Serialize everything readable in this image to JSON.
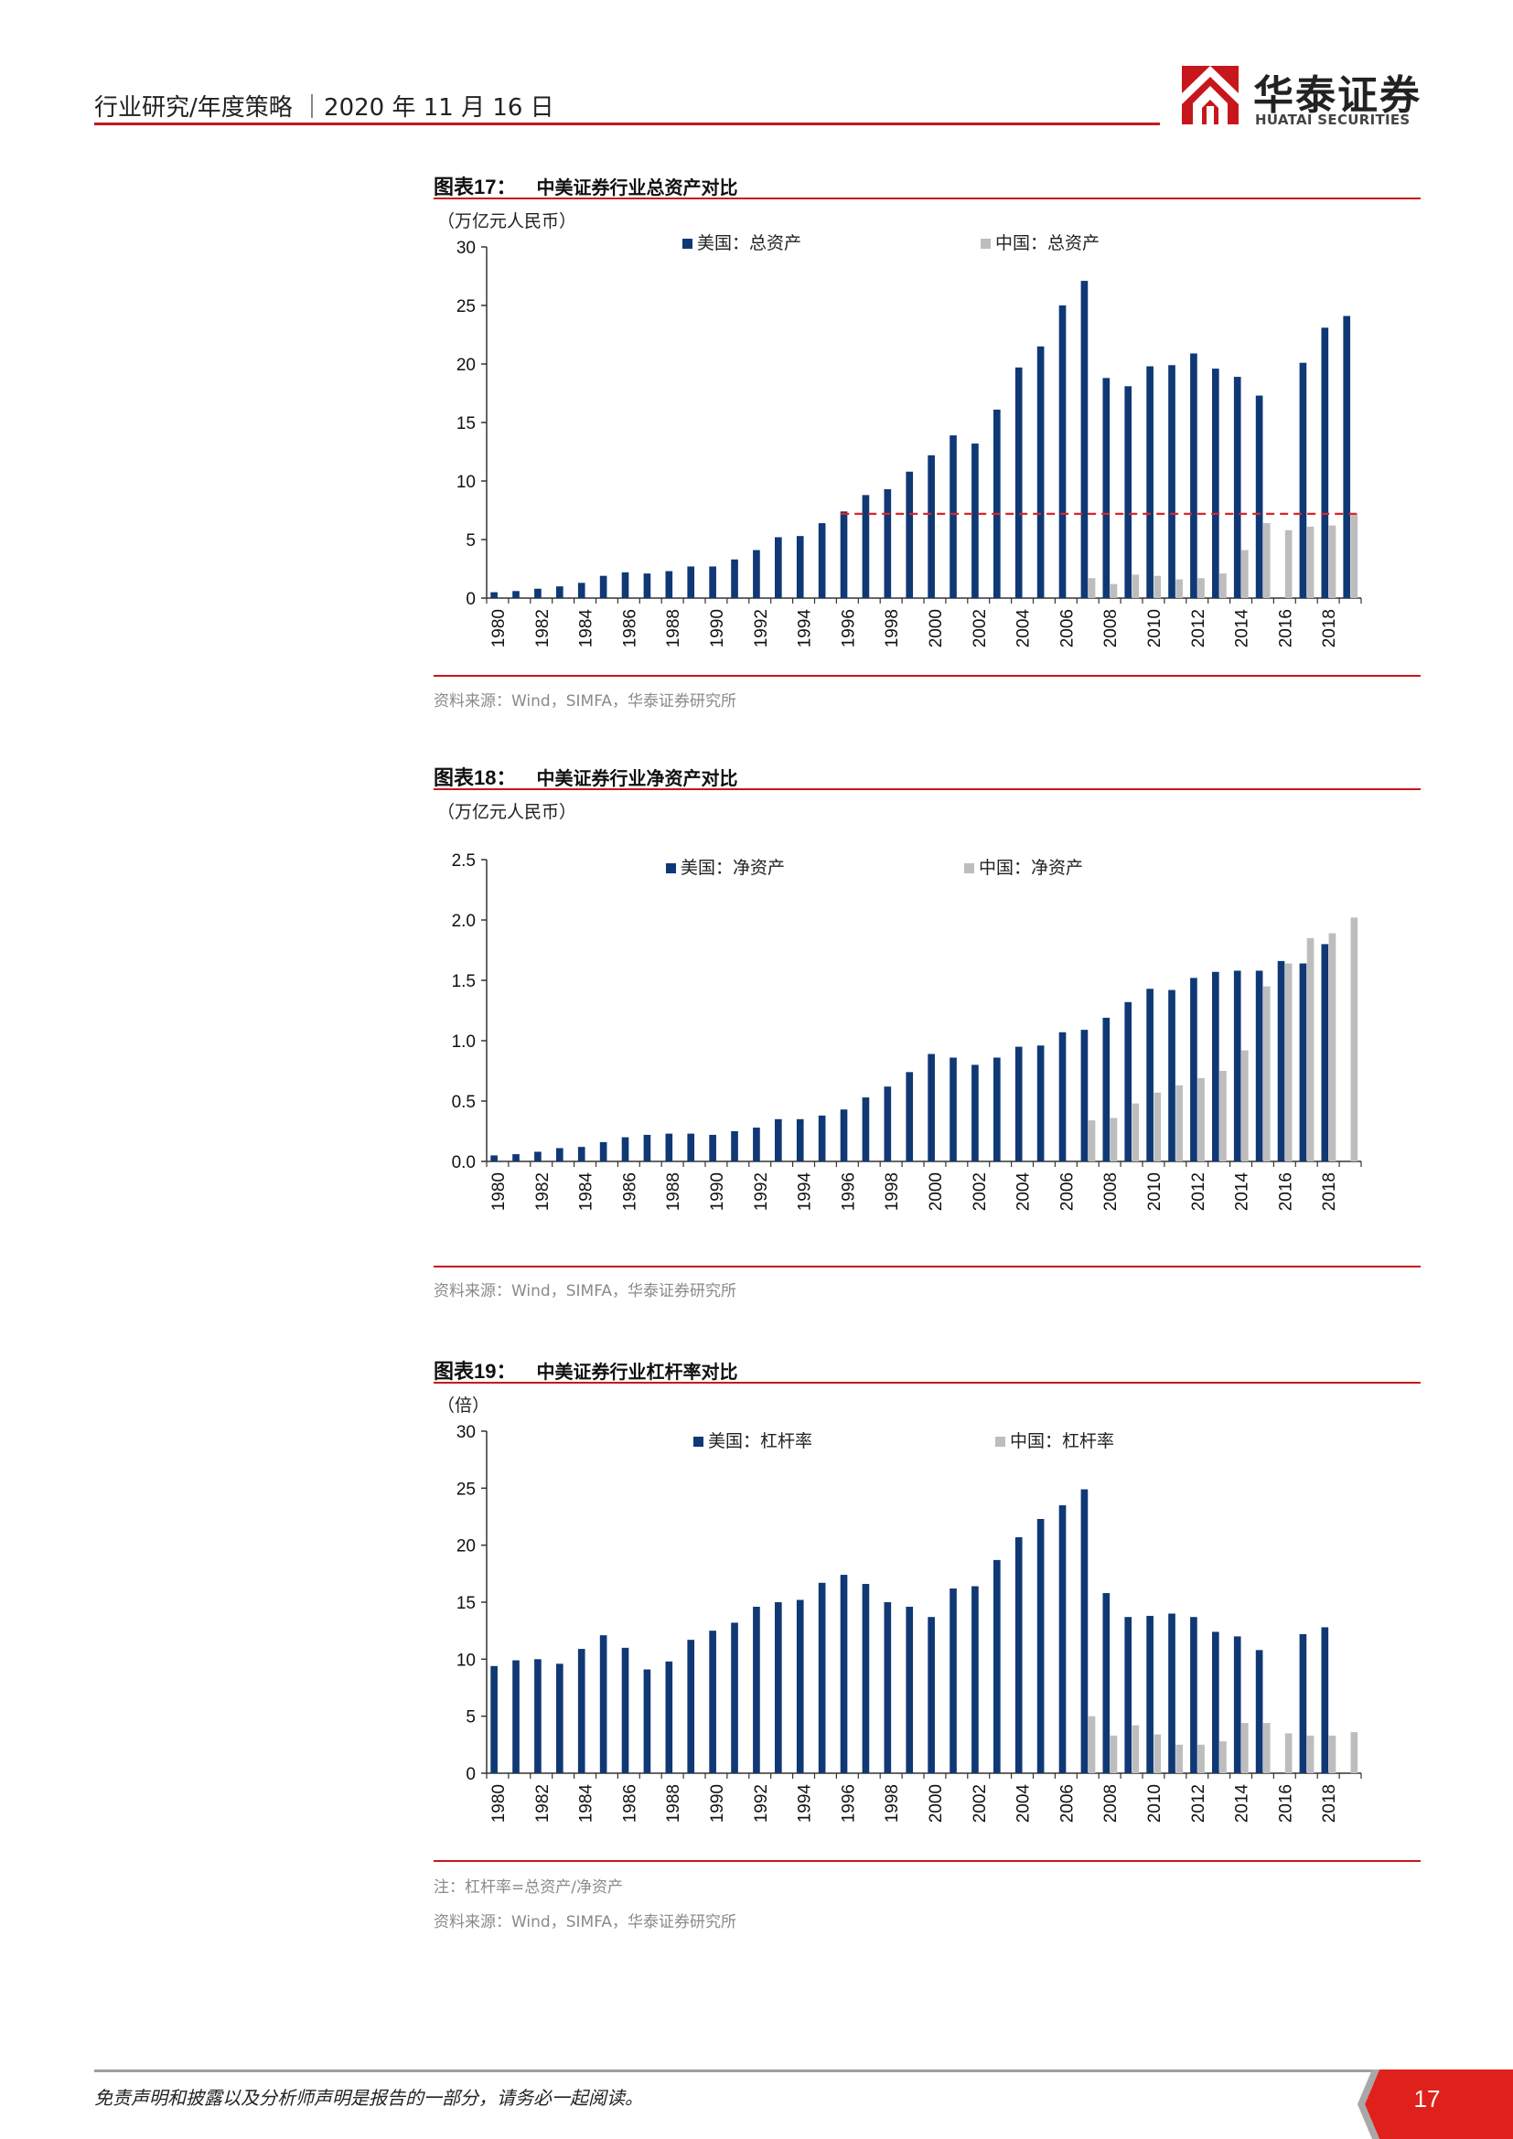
{
  "header": {
    "left_text": "行业研究/年度策略 ｜2020 年 11 月 16 日",
    "logo_text": "华泰证券",
    "logo_sub": "HUATAI SECURITIES"
  },
  "colors": {
    "us": "#0f3875",
    "cn": "#bdbdbd",
    "accent": "#c8161d",
    "ref_line": "#d9262b"
  },
  "figures": [
    {
      "label": "图表17：",
      "title": "中美证券行业总资产对比",
      "unit": "（万亿元人民币）",
      "source": "资料来源：Wind，SIMFA，华泰证券研究所",
      "chart_data": {
        "type": "bar",
        "categories": [
          "1980",
          "1981",
          "1982",
          "1983",
          "1984",
          "1985",
          "1986",
          "1987",
          "1988",
          "1989",
          "1990",
          "1991",
          "1992",
          "1993",
          "1994",
          "1995",
          "1996",
          "1997",
          "1998",
          "1999",
          "2000",
          "2001",
          "2002",
          "2003",
          "2004",
          "2005",
          "2006",
          "2007",
          "2008",
          "2009",
          "2010",
          "2011",
          "2012",
          "2013",
          "2014",
          "2015",
          "2016",
          "2017",
          "2018",
          "2019"
        ],
        "ylim": [
          0,
          30
        ],
        "yticks": [
          "0",
          "5",
          "10",
          "15",
          "20",
          "25",
          "30"
        ],
        "yticks_values": [
          0,
          5,
          10,
          15,
          20,
          25,
          30
        ],
        "xtick_labels": [
          "1980",
          "1982",
          "1984",
          "1986",
          "1988",
          "1990",
          "1992",
          "1994",
          "1996",
          "1998",
          "2000",
          "2002",
          "2004",
          "2006",
          "2008",
          "2010",
          "2012",
          "2014",
          "2016",
          "2018"
        ],
        "legend_position": "top",
        "reference_line": {
          "value": 7.2,
          "from": "1996",
          "to": "2019",
          "style": "dashed"
        },
        "series": [
          {
            "name": "美国：总资产",
            "values": [
              0.5,
              0.6,
              0.8,
              1.0,
              1.3,
              1.9,
              2.2,
              2.1,
              2.3,
              2.7,
              2.7,
              3.3,
              4.1,
              5.2,
              5.3,
              6.4,
              7.4,
              8.8,
              9.3,
              10.8,
              12.2,
              13.9,
              13.2,
              16.1,
              19.7,
              21.5,
              25.0,
              27.1,
              18.8,
              18.1,
              19.8,
              19.9,
              20.9,
              19.6,
              18.9,
              17.3,
              null,
              20.1,
              23.1,
              24.1
            ]
          },
          {
            "name": "中国：总资产",
            "values": [
              null,
              null,
              null,
              null,
              null,
              null,
              null,
              null,
              null,
              null,
              null,
              null,
              null,
              null,
              null,
              null,
              null,
              null,
              null,
              null,
              null,
              null,
              null,
              null,
              null,
              null,
              null,
              1.7,
              1.2,
              2.0,
              1.9,
              1.6,
              1.7,
              2.1,
              4.1,
              6.4,
              5.8,
              6.1,
              6.2,
              7.2
            ]
          }
        ]
      }
    },
    {
      "label": "图表18：",
      "title": "中美证券行业净资产对比",
      "unit": "（万亿元人民币）",
      "source": "资料来源：Wind，SIMFA，华泰证券研究所",
      "chart_data": {
        "type": "bar",
        "categories": [
          "1980",
          "1981",
          "1982",
          "1983",
          "1984",
          "1985",
          "1986",
          "1987",
          "1988",
          "1989",
          "1990",
          "1991",
          "1992",
          "1993",
          "1994",
          "1995",
          "1996",
          "1997",
          "1998",
          "1999",
          "2000",
          "2001",
          "2002",
          "2003",
          "2004",
          "2005",
          "2006",
          "2007",
          "2008",
          "2009",
          "2010",
          "2011",
          "2012",
          "2013",
          "2014",
          "2015",
          "2016",
          "2017",
          "2018",
          "2019"
        ],
        "ylim": [
          0,
          2.5
        ],
        "yticks": [
          "0.0",
          "0.5",
          "1.0",
          "1.5",
          "2.0",
          "2.5"
        ],
        "yticks_values": [
          0,
          0.5,
          1.0,
          1.5,
          2.0,
          2.5
        ],
        "xtick_labels": [
          "1980",
          "1982",
          "1984",
          "1986",
          "1988",
          "1990",
          "1992",
          "1994",
          "1996",
          "1998",
          "2000",
          "2002",
          "2004",
          "2006",
          "2008",
          "2010",
          "2012",
          "2014",
          "2016",
          "2018"
        ],
        "legend_position": "top",
        "series": [
          {
            "name": "美国：净资产",
            "values": [
              0.05,
              0.06,
              0.08,
              0.11,
              0.12,
              0.16,
              0.2,
              0.22,
              0.23,
              0.23,
              0.22,
              0.25,
              0.28,
              0.35,
              0.35,
              0.38,
              0.43,
              0.53,
              0.62,
              0.74,
              0.89,
              0.86,
              0.8,
              0.86,
              0.95,
              0.96,
              1.07,
              1.09,
              1.19,
              1.32,
              1.43,
              1.42,
              1.52,
              1.57,
              1.58,
              1.58,
              1.66,
              1.64,
              1.8,
              null
            ]
          },
          {
            "name": "中国：净资产",
            "values": [
              null,
              null,
              null,
              null,
              null,
              null,
              null,
              null,
              null,
              null,
              null,
              null,
              null,
              null,
              null,
              null,
              null,
              null,
              null,
              null,
              null,
              null,
              null,
              null,
              null,
              null,
              null,
              0.34,
              0.36,
              0.48,
              0.57,
              0.63,
              0.69,
              0.75,
              0.92,
              1.45,
              1.64,
              1.85,
              1.89,
              2.02
            ]
          }
        ]
      }
    },
    {
      "label": "图表19：",
      "title": "中美证券行业杠杆率对比",
      "unit": "（倍）",
      "note": "注：杠杆率=总资产/净资产",
      "source": "资料来源：Wind，SIMFA，华泰证券研究所",
      "chart_data": {
        "type": "bar",
        "categories": [
          "1980",
          "1981",
          "1982",
          "1983",
          "1984",
          "1985",
          "1986",
          "1987",
          "1988",
          "1989",
          "1990",
          "1991",
          "1992",
          "1993",
          "1994",
          "1995",
          "1996",
          "1997",
          "1998",
          "1999",
          "2000",
          "2001",
          "2002",
          "2003",
          "2004",
          "2005",
          "2006",
          "2007",
          "2008",
          "2009",
          "2010",
          "2011",
          "2012",
          "2013",
          "2014",
          "2015",
          "2016",
          "2017",
          "2018",
          "2019"
        ],
        "ylim": [
          0,
          30
        ],
        "yticks": [
          "0",
          "5",
          "10",
          "15",
          "20",
          "25",
          "30"
        ],
        "yticks_values": [
          0,
          5,
          10,
          15,
          20,
          25,
          30
        ],
        "xtick_labels": [
          "1980",
          "1982",
          "1984",
          "1986",
          "1988",
          "1990",
          "1992",
          "1994",
          "1996",
          "1998",
          "2000",
          "2002",
          "2004",
          "2006",
          "2008",
          "2010",
          "2012",
          "2014",
          "2016",
          "2018"
        ],
        "legend_position": "top",
        "series": [
          {
            "name": "美国：杠杆率",
            "values": [
              9.4,
              9.9,
              10.0,
              9.6,
              10.9,
              12.1,
              11.0,
              9.1,
              9.8,
              11.7,
              12.5,
              13.2,
              14.6,
              15.0,
              15.2,
              16.7,
              17.4,
              16.6,
              15.0,
              14.6,
              13.7,
              16.2,
              16.4,
              18.7,
              20.7,
              22.3,
              23.5,
              24.9,
              15.8,
              13.7,
              13.8,
              14.0,
              13.7,
              12.4,
              12.0,
              10.8,
              null,
              12.2,
              12.8,
              null
            ]
          },
          {
            "name": "中国：杠杆率",
            "values": [
              null,
              null,
              null,
              null,
              null,
              null,
              null,
              null,
              null,
              null,
              null,
              null,
              null,
              null,
              null,
              null,
              null,
              null,
              null,
              null,
              null,
              null,
              null,
              null,
              null,
              null,
              null,
              5.0,
              3.3,
              4.2,
              3.4,
              2.5,
              2.5,
              2.8,
              4.4,
              4.4,
              3.5,
              3.3,
              3.3,
              3.6
            ]
          }
        ]
      }
    }
  ],
  "footer": {
    "disclaimer": "免责声明和披露以及分析师声明是报告的一部分，请务必一起阅读。",
    "page": "17"
  }
}
